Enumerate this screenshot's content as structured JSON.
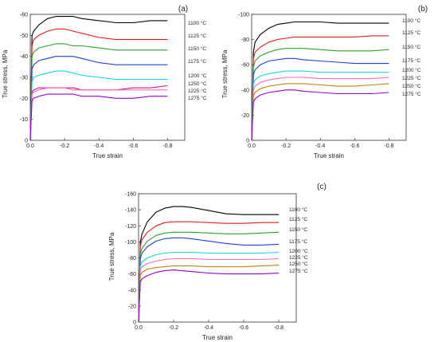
{
  "chart_data": [
    {
      "type": "line",
      "panel_label": "(a)",
      "xlabel": "True strain",
      "ylabel": "True stress, MPa",
      "xlim": [
        0.0,
        -0.9
      ],
      "ylim": [
        0,
        -60
      ],
      "xticks": [
        0.0,
        -0.2,
        -0.4,
        -0.6,
        -0.8
      ],
      "xtick_labels": [
        "0.0",
        "-0.2",
        "-0.4",
        "-0.6",
        "-0.8"
      ],
      "yticks": [
        0,
        -10,
        -20,
        -30,
        -40,
        -50,
        -60
      ],
      "ytick_labels": [
        "0",
        "-10",
        "-20",
        "-30",
        "-40",
        "-50",
        "-60"
      ],
      "series": [
        {
          "name": "1100 °C",
          "color": "#000000",
          "x": [
            0.0,
            -0.01,
            -0.02,
            -0.05,
            -0.1,
            -0.15,
            -0.2,
            -0.25,
            -0.3,
            -0.4,
            -0.5,
            -0.6,
            -0.7,
            -0.8
          ],
          "y": [
            0,
            -50,
            -52,
            -55,
            -58,
            -59,
            -59,
            -59,
            -58,
            -57,
            -56,
            -56,
            -57,
            -57
          ]
        },
        {
          "name": "1125 °C",
          "color": "#e41a1c",
          "x": [
            0.0,
            -0.01,
            -0.02,
            -0.05,
            -0.1,
            -0.15,
            -0.2,
            -0.25,
            -0.3,
            -0.4,
            -0.5,
            -0.6,
            -0.7,
            -0.8
          ],
          "y": [
            0,
            -45,
            -48,
            -50,
            -52,
            -53,
            -53,
            -52,
            -51,
            -49,
            -48,
            -48,
            -48,
            -48
          ]
        },
        {
          "name": "1150 °C",
          "color": "#2ca02c",
          "x": [
            0.0,
            -0.01,
            -0.02,
            -0.05,
            -0.1,
            -0.15,
            -0.2,
            -0.25,
            -0.3,
            -0.4,
            -0.5,
            -0.6,
            -0.7,
            -0.8
          ],
          "y": [
            0,
            -40,
            -42,
            -44,
            -45,
            -46,
            -46,
            -45,
            -45,
            -44,
            -43,
            -43,
            -43,
            -43
          ]
        },
        {
          "name": "1175 °C",
          "color": "#1f3fd6",
          "x": [
            0.0,
            -0.01,
            -0.02,
            -0.05,
            -0.1,
            -0.15,
            -0.2,
            -0.25,
            -0.3,
            -0.4,
            -0.5,
            -0.6,
            -0.7,
            -0.8
          ],
          "y": [
            0,
            -34,
            -36,
            -38,
            -39,
            -40,
            -40,
            -40,
            -39,
            -37,
            -36,
            -36,
            -36,
            -36
          ]
        },
        {
          "name": "1200 °C",
          "color": "#17d4e6",
          "x": [
            0.0,
            -0.01,
            -0.02,
            -0.05,
            -0.1,
            -0.15,
            -0.2,
            -0.25,
            -0.3,
            -0.4,
            -0.5,
            -0.6,
            -0.7,
            -0.8
          ],
          "y": [
            0,
            -28,
            -30,
            -31,
            -32,
            -33,
            -33,
            -32,
            -31,
            -30,
            -29,
            -29,
            -29,
            -29
          ]
        },
        {
          "name": "1250 °C",
          "color": "#c71585",
          "x": [
            0.0,
            -0.01,
            -0.02,
            -0.05,
            -0.1,
            -0.15,
            -0.2,
            -0.25,
            -0.3,
            -0.4,
            -0.5,
            -0.6,
            -0.7,
            -0.8
          ],
          "y": [
            0,
            -23,
            -24,
            -25,
            -25,
            -25,
            -25,
            -25,
            -24,
            -24,
            -24,
            -25,
            -25,
            -26
          ]
        },
        {
          "name": "1225 °C",
          "color": "#ff69b4",
          "x": [
            0.0,
            -0.01,
            -0.02,
            -0.05,
            -0.1,
            -0.15,
            -0.2,
            -0.25,
            -0.3,
            -0.4,
            -0.5,
            -0.6,
            -0.7,
            -0.8
          ],
          "y": [
            0,
            -22,
            -23,
            -24,
            -25,
            -25,
            -25,
            -24,
            -24,
            -24,
            -24,
            -24,
            -24,
            -24
          ]
        },
        {
          "name": "1275 °C",
          "color": "#9400d3",
          "x": [
            0.0,
            -0.01,
            -0.02,
            -0.05,
            -0.1,
            -0.15,
            -0.2,
            -0.25,
            -0.3,
            -0.4,
            -0.5,
            -0.6,
            -0.7,
            -0.8
          ],
          "y": [
            0,
            -19,
            -20,
            -21,
            -22,
            -22,
            -22,
            -22,
            -21,
            -21,
            -20,
            -20,
            -21,
            -21
          ]
        }
      ]
    },
    {
      "type": "line",
      "panel_label": "(b)",
      "xlabel": "True strain",
      "ylabel": "True stress, MPa",
      "xlim": [
        0.0,
        -0.9
      ],
      "ylim": [
        0,
        -100
      ],
      "xticks": [
        0.0,
        -0.2,
        -0.4,
        -0.6,
        -0.8
      ],
      "xtick_labels": [
        "0.0",
        "-0.2",
        "-0.4",
        "-0.6",
        "-0.8"
      ],
      "yticks": [
        0,
        -20,
        -40,
        -60,
        -80,
        -100
      ],
      "ytick_labels": [
        "0",
        "-20",
        "-40",
        "-60",
        "-80",
        "-100"
      ],
      "series": [
        {
          "name": "1100 °C",
          "color": "#000000",
          "x": [
            0.0,
            -0.01,
            -0.02,
            -0.05,
            -0.1,
            -0.15,
            -0.2,
            -0.25,
            -0.3,
            -0.4,
            -0.5,
            -0.6,
            -0.7,
            -0.8
          ],
          "y": [
            0,
            -70,
            -78,
            -84,
            -89,
            -92,
            -93,
            -94,
            -94,
            -94,
            -93,
            -93,
            -93,
            -93
          ]
        },
        {
          "name": "1125 °C",
          "color": "#e41a1c",
          "x": [
            0.0,
            -0.01,
            -0.02,
            -0.05,
            -0.1,
            -0.15,
            -0.2,
            -0.25,
            -0.3,
            -0.4,
            -0.5,
            -0.6,
            -0.7,
            -0.8
          ],
          "y": [
            0,
            -65,
            -70,
            -74,
            -78,
            -80,
            -81,
            -82,
            -82,
            -82,
            -82,
            -82,
            -83,
            -83
          ]
        },
        {
          "name": "1150 °C",
          "color": "#2ca02c",
          "x": [
            0.0,
            -0.01,
            -0.02,
            -0.05,
            -0.1,
            -0.15,
            -0.2,
            -0.25,
            -0.3,
            -0.4,
            -0.5,
            -0.6,
            -0.7,
            -0.8
          ],
          "y": [
            0,
            -58,
            -63,
            -67,
            -70,
            -72,
            -73,
            -73,
            -73,
            -72,
            -71,
            -71,
            -71,
            -72
          ]
        },
        {
          "name": "1175 °C",
          "color": "#1f3fd6",
          "x": [
            0.0,
            -0.01,
            -0.02,
            -0.05,
            -0.1,
            -0.15,
            -0.2,
            -0.25,
            -0.3,
            -0.4,
            -0.5,
            -0.6,
            -0.7,
            -0.8
          ],
          "y": [
            0,
            -52,
            -56,
            -60,
            -63,
            -64,
            -65,
            -65,
            -64,
            -63,
            -62,
            -61,
            -61,
            -61
          ]
        },
        {
          "name": "1200 °C",
          "color": "#17d4e6",
          "x": [
            0.0,
            -0.01,
            -0.02,
            -0.05,
            -0.1,
            -0.15,
            -0.2,
            -0.25,
            -0.3,
            -0.4,
            -0.5,
            -0.6,
            -0.7,
            -0.8
          ],
          "y": [
            0,
            -45,
            -48,
            -51,
            -53,
            -54,
            -55,
            -55,
            -55,
            -54,
            -54,
            -54,
            -54,
            -54
          ]
        },
        {
          "name": "1225 °C",
          "color": "#ff69b4",
          "x": [
            0.0,
            -0.01,
            -0.02,
            -0.05,
            -0.1,
            -0.15,
            -0.2,
            -0.25,
            -0.3,
            -0.4,
            -0.5,
            -0.6,
            -0.7,
            -0.8
          ],
          "y": [
            0,
            -40,
            -43,
            -46,
            -48,
            -49,
            -50,
            -50,
            -50,
            -49,
            -49,
            -49,
            -49,
            -50
          ]
        },
        {
          "name": "1250 °C",
          "color": "#b8860b",
          "x": [
            0.0,
            -0.01,
            -0.02,
            -0.05,
            -0.1,
            -0.15,
            -0.2,
            -0.25,
            -0.3,
            -0.4,
            -0.5,
            -0.6,
            -0.7,
            -0.8
          ],
          "y": [
            0,
            -35,
            -38,
            -41,
            -43,
            -44,
            -45,
            -45,
            -45,
            -44,
            -43,
            -43,
            -44,
            -45
          ]
        },
        {
          "name": "1275 °C",
          "color": "#9400d3",
          "x": [
            0.0,
            -0.01,
            -0.02,
            -0.05,
            -0.1,
            -0.15,
            -0.2,
            -0.25,
            -0.3,
            -0.4,
            -0.5,
            -0.6,
            -0.7,
            -0.8
          ],
          "y": [
            0,
            -30,
            -33,
            -36,
            -38,
            -39,
            -40,
            -40,
            -39,
            -38,
            -37,
            -37,
            -37,
            -38
          ]
        }
      ]
    },
    {
      "type": "line",
      "panel_label": "(c)",
      "xlabel": "True strain",
      "ylabel": "True stress, MPa",
      "xlim": [
        0.0,
        -0.9
      ],
      "ylim": [
        0,
        -160
      ],
      "xticks": [
        0.0,
        -0.2,
        -0.4,
        -0.6,
        -0.8
      ],
      "xtick_labels": [
        "0.0",
        "-0.2",
        "-0.4",
        "-0.6",
        "-0.8"
      ],
      "yticks": [
        0,
        -20,
        -40,
        -60,
        -80,
        -100,
        -120,
        -140,
        -160
      ],
      "ytick_labels": [
        "0",
        "-20",
        "-40",
        "-60",
        "-80",
        "-100",
        "-120",
        "-140",
        "-160"
      ],
      "series": [
        {
          "name": "1100 °C",
          "color": "#000000",
          "x": [
            0.0,
            -0.01,
            -0.02,
            -0.05,
            -0.1,
            -0.15,
            -0.2,
            -0.25,
            -0.3,
            -0.4,
            -0.5,
            -0.6,
            -0.7,
            -0.8
          ],
          "y": [
            0,
            -100,
            -110,
            -125,
            -137,
            -142,
            -144,
            -144,
            -143,
            -139,
            -135,
            -134,
            -134,
            -134
          ]
        },
        {
          "name": "1125 °C",
          "color": "#e41a1c",
          "x": [
            0.0,
            -0.01,
            -0.02,
            -0.05,
            -0.1,
            -0.15,
            -0.2,
            -0.25,
            -0.3,
            -0.4,
            -0.5,
            -0.6,
            -0.7,
            -0.8
          ],
          "y": [
            0,
            -95,
            -103,
            -112,
            -120,
            -124,
            -125,
            -125,
            -125,
            -124,
            -123,
            -123,
            -124,
            -124
          ]
        },
        {
          "name": "1150 °C",
          "color": "#2ca02c",
          "x": [
            0.0,
            -0.01,
            -0.02,
            -0.05,
            -0.1,
            -0.15,
            -0.2,
            -0.25,
            -0.3,
            -0.4,
            -0.5,
            -0.6,
            -0.7,
            -0.8
          ],
          "y": [
            0,
            -85,
            -92,
            -101,
            -108,
            -111,
            -112,
            -112,
            -112,
            -111,
            -110,
            -110,
            -111,
            -112
          ]
        },
        {
          "name": "1175 °C",
          "color": "#1f3fd6",
          "x": [
            0.0,
            -0.01,
            -0.02,
            -0.05,
            -0.1,
            -0.15,
            -0.2,
            -0.25,
            -0.3,
            -0.4,
            -0.5,
            -0.6,
            -0.7,
            -0.8
          ],
          "y": [
            0,
            -80,
            -86,
            -94,
            -101,
            -104,
            -105,
            -105,
            -104,
            -101,
            -98,
            -96,
            -96,
            -97
          ]
        },
        {
          "name": "1200 °C",
          "color": "#17d4e6",
          "x": [
            0.0,
            -0.01,
            -0.02,
            -0.05,
            -0.1,
            -0.15,
            -0.2,
            -0.25,
            -0.3,
            -0.4,
            -0.5,
            -0.6,
            -0.7,
            -0.8
          ],
          "y": [
            0,
            -70,
            -75,
            -80,
            -84,
            -86,
            -87,
            -87,
            -87,
            -86,
            -86,
            -86,
            -86,
            -87
          ]
        },
        {
          "name": "1225 °C",
          "color": "#ff69b4",
          "x": [
            0.0,
            -0.01,
            -0.02,
            -0.05,
            -0.1,
            -0.15,
            -0.2,
            -0.25,
            -0.3,
            -0.4,
            -0.5,
            -0.6,
            -0.7,
            -0.8
          ],
          "y": [
            0,
            -65,
            -69,
            -73,
            -76,
            -78,
            -79,
            -79,
            -79,
            -78,
            -78,
            -78,
            -78,
            -79
          ]
        },
        {
          "name": "1250 °C",
          "color": "#b8860b",
          "x": [
            0.0,
            -0.01,
            -0.02,
            -0.05,
            -0.1,
            -0.15,
            -0.2,
            -0.25,
            -0.3,
            -0.4,
            -0.5,
            -0.6,
            -0.7,
            -0.8
          ],
          "y": [
            0,
            -58,
            -62,
            -66,
            -68,
            -69,
            -70,
            -70,
            -70,
            -69,
            -69,
            -69,
            -70,
            -71
          ]
        },
        {
          "name": "1275 °C",
          "color": "#9400d3",
          "x": [
            0.0,
            -0.01,
            -0.02,
            -0.05,
            -0.1,
            -0.15,
            -0.2,
            -0.25,
            -0.3,
            -0.4,
            -0.5,
            -0.6,
            -0.7,
            -0.8
          ],
          "y": [
            0,
            -50,
            -54,
            -58,
            -62,
            -64,
            -65,
            -64,
            -63,
            -61,
            -60,
            -60,
            -60,
            -61
          ]
        }
      ]
    }
  ]
}
